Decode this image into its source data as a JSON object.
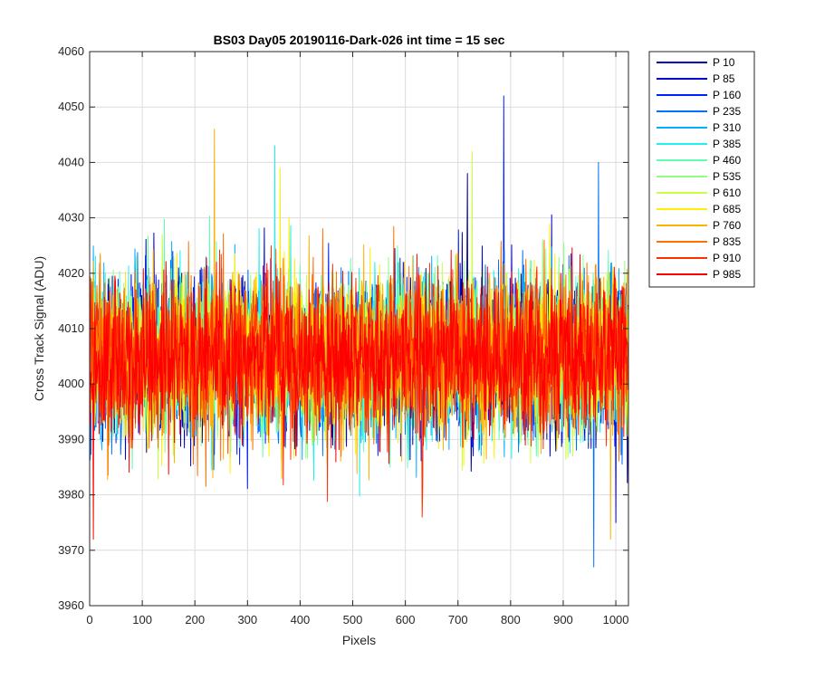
{
  "chart_data": {
    "type": "line",
    "title": "BS03 Day05 20190116-Dark-026 int time = 15 sec",
    "xlabel": "Pixels",
    "ylabel": "Cross Track Signal (ADU)",
    "xlim": [
      0,
      1024
    ],
    "ylim": [
      3960,
      4060
    ],
    "xticks": [
      0,
      100,
      200,
      300,
      400,
      500,
      600,
      700,
      800,
      900,
      1000
    ],
    "yticks": [
      3960,
      3970,
      3980,
      3990,
      4000,
      4010,
      4020,
      4030,
      4040,
      4050,
      4060
    ],
    "grid": true,
    "legend_position": "outside-right",
    "noise_model": {
      "n_points": 1024,
      "center": 4005,
      "std": 7,
      "typical_min": 3985,
      "typical_max": 4025
    },
    "series": [
      {
        "name": "P 10",
        "color": "#00008F",
        "mean": 4005
      },
      {
        "name": "P 85",
        "color": "#0000D0",
        "mean": 4005
      },
      {
        "name": "P 160",
        "color": "#0020FF",
        "mean": 4005
      },
      {
        "name": "P 235",
        "color": "#0070FF",
        "mean": 4005
      },
      {
        "name": "P 310",
        "color": "#00B0FF",
        "mean": 4005
      },
      {
        "name": "P 385",
        "color": "#20F0F0",
        "mean": 4005
      },
      {
        "name": "P 460",
        "color": "#60FFB0",
        "mean": 4005
      },
      {
        "name": "P 535",
        "color": "#90FF80",
        "mean": 4005
      },
      {
        "name": "P 610",
        "color": "#C8FF40",
        "mean": 4005
      },
      {
        "name": "P 685",
        "color": "#FFF000",
        "mean": 4005
      },
      {
        "name": "P 760",
        "color": "#FFB000",
        "mean": 4005
      },
      {
        "name": "P 835",
        "color": "#FF7000",
        "mean": 4005
      },
      {
        "name": "P 910",
        "color": "#FF3000",
        "mean": 4005
      },
      {
        "name": "P 985",
        "color": "#FF0000",
        "mean": 4005
      }
    ],
    "peaks": [
      {
        "series": "P 160",
        "x": 787,
        "y": 4052
      },
      {
        "series": "P 760",
        "x": 237,
        "y": 4046
      },
      {
        "series": "P 385",
        "x": 352,
        "y": 4043
      },
      {
        "series": "P 610",
        "x": 727,
        "y": 4042
      },
      {
        "series": "P 235",
        "x": 967,
        "y": 4040
      },
      {
        "series": "P 685",
        "x": 362,
        "y": 4039
      },
      {
        "series": "P 10",
        "x": 718,
        "y": 4038
      },
      {
        "series": "P 235",
        "x": 958,
        "y": 3967
      },
      {
        "series": "P 985",
        "x": 7,
        "y": 3972
      },
      {
        "series": "P 760",
        "x": 990,
        "y": 3972
      },
      {
        "series": "P 910",
        "x": 632,
        "y": 3976
      },
      {
        "series": "P 85",
        "x": 1000,
        "y": 3975
      }
    ]
  }
}
